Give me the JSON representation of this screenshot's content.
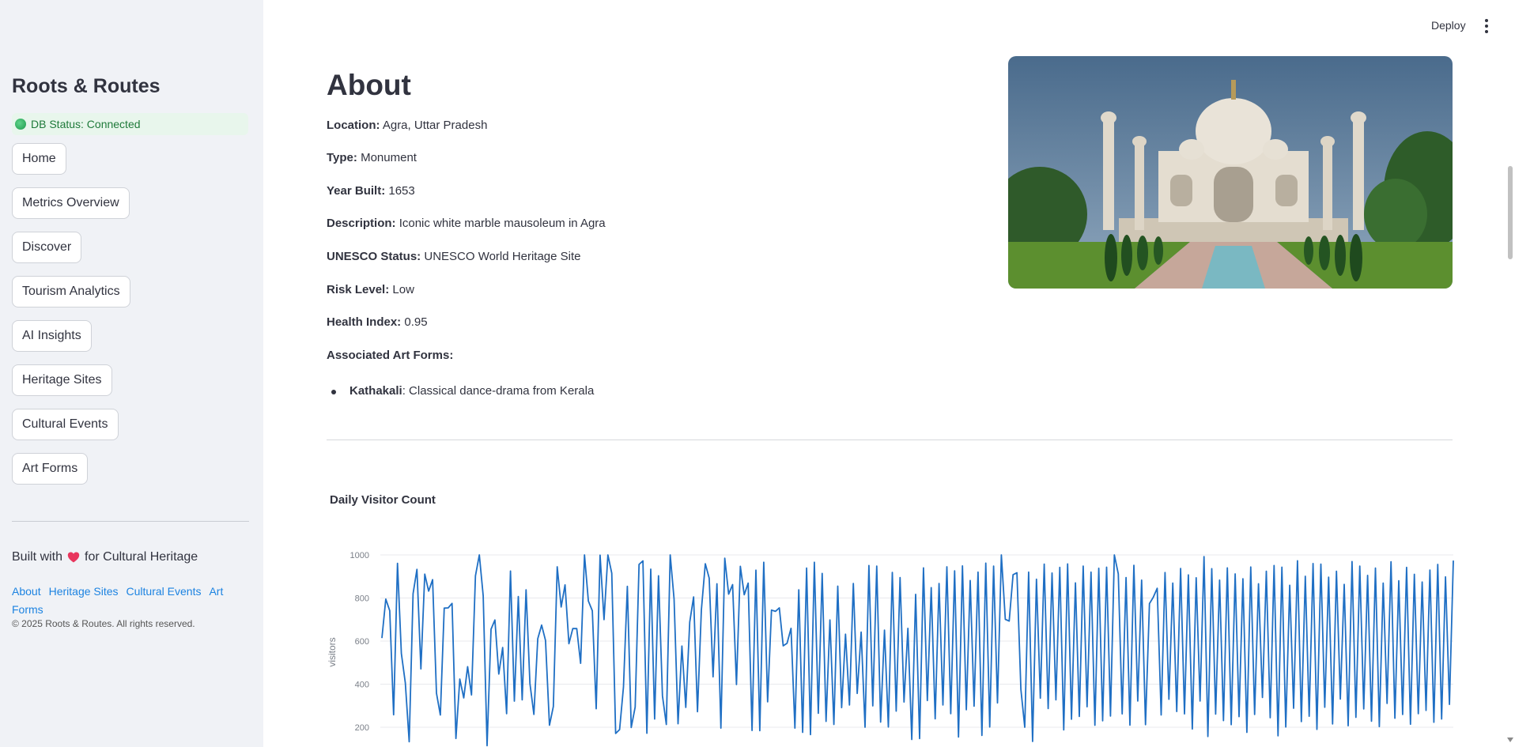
{
  "sidebar": {
    "title": "Roots & Routes",
    "db_status": "DB Status: Connected",
    "nav": [
      "Home",
      "Metrics Overview",
      "Discover",
      "Tourism Analytics",
      "AI Insights",
      "Heritage Sites",
      "Cultural Events",
      "Art Forms"
    ],
    "built_with_prefix": "Built with",
    "built_with_suffix": "for Cultural Heritage",
    "footer_links": [
      "About",
      "Heritage Sites",
      "Cultural Events",
      "Art Forms"
    ],
    "copyright": "© 2025 Roots & Routes. All rights reserved."
  },
  "header": {
    "deploy": "Deploy"
  },
  "main": {
    "title": "About",
    "fields": [
      {
        "label": "Location:",
        "value": "Agra, Uttar Pradesh"
      },
      {
        "label": "Type:",
        "value": "Monument"
      },
      {
        "label": "Year Built:",
        "value": "1653"
      },
      {
        "label": "Description:",
        "value": "Iconic white marble mausoleum in Agra"
      },
      {
        "label": "UNESCO Status:",
        "value": "UNESCO World Heritage Site"
      },
      {
        "label": "Risk Level:",
        "value": "Low"
      },
      {
        "label": "Health Index:",
        "value": "0.95"
      },
      {
        "label": "Associated Art Forms:",
        "value": ""
      }
    ],
    "art_forms": [
      {
        "name": "Kathakali",
        "desc": ": Classical dance-drama from Kerala"
      }
    ],
    "chart_title": "Daily Visitor Count"
  },
  "colors": {
    "accent": "#1c83e1",
    "line": "#1f6fc4",
    "sidebar_bg": "#f0f2f6",
    "status_bg": "#e8f6ec"
  },
  "chart_data": {
    "type": "line",
    "title": "Daily Visitor Count",
    "ylabel": "visitors",
    "xlabel": "",
    "yticks": [
      "1000",
      "800",
      "600",
      "400",
      "200"
    ],
    "ylim": [
      110,
      1000
    ],
    "y": [
      614,
      795,
      741,
      258,
      961,
      542,
      406,
      133,
      820,
      933,
      471,
      911,
      832,
      885,
      358,
      257,
      753,
      754,
      775,
      148,
      424,
      336,
      481,
      350,
      903,
      1000,
      810,
      114,
      655,
      698,
      447,
      570,
      263,
      925,
      321,
      807,
      327,
      838,
      403,
      260,
      611,
      674,
      603,
      209,
      296,
      945,
      758,
      861,
      588,
      658,
      658,
      497,
      1000,
      786,
      741,
      286,
      999,
      700,
      1000,
      915,
      171,
      189,
      387,
      854,
      199,
      294,
      956,
      972,
      172,
      934,
      238,
      903,
      346,
      213,
      1000,
      795,
      216,
      577,
      292,
      688,
      805,
      272,
      744,
      959,
      892,
      434,
      866,
      196,
      985,
      818,
      862,
      398,
      947,
      815,
      869,
      185,
      929,
      184,
      966,
      318,
      744,
      738,
      754,
      578,
      590,
      659,
      196,
      838,
      176,
      939,
      166,
      966,
      265,
      914,
      227,
      698,
      213,
      855,
      291,
      632,
      303,
      867,
      357,
      642,
      200,
      951,
      299,
      948,
      224,
      651,
      201,
      919,
      275,
      895,
      317,
      659,
      143,
      817,
      147,
      940,
      324,
      848,
      239,
      867,
      303,
      945,
      263,
      926,
      155,
      949,
      281,
      881,
      298,
      920,
      162,
      962,
      201,
      948,
      313,
      1000,
      701,
      693,
      908,
      917,
      376,
      200,
      920,
      134,
      887,
      335,
      957,
      287,
      916,
      327,
      942,
      188,
      958,
      237,
      870,
      250,
      948,
      295,
      920,
      209,
      938,
      230,
      943,
      252,
      1000,
      912,
      262,
      895,
      210,
      952,
      322,
      883,
      212,
      774,
      804,
      845,
      257,
      918,
      330,
      869,
      273,
      937,
      262,
      907,
      192,
      894,
      322,
      992,
      157,
      936,
      261,
      883,
      231,
      940,
      212,
      912,
      249,
      889,
      176,
      944,
      259,
      866,
      338,
      924,
      244,
      951,
      160,
      943,
      201,
      859,
      288,
      973,
      226,
      901,
      251,
      960,
      190,
      957,
      293,
      897,
      215,
      924,
      331,
      863,
      207,
      969,
      246,
      948,
      285,
      905,
      228,
      939,
      203,
      869,
      311,
      968,
      242,
      880,
      259,
      942,
      214,
      910,
      263,
      874,
      278,
      930,
      223,
      956,
      238,
      898,
      306,
      974
    ]
  }
}
